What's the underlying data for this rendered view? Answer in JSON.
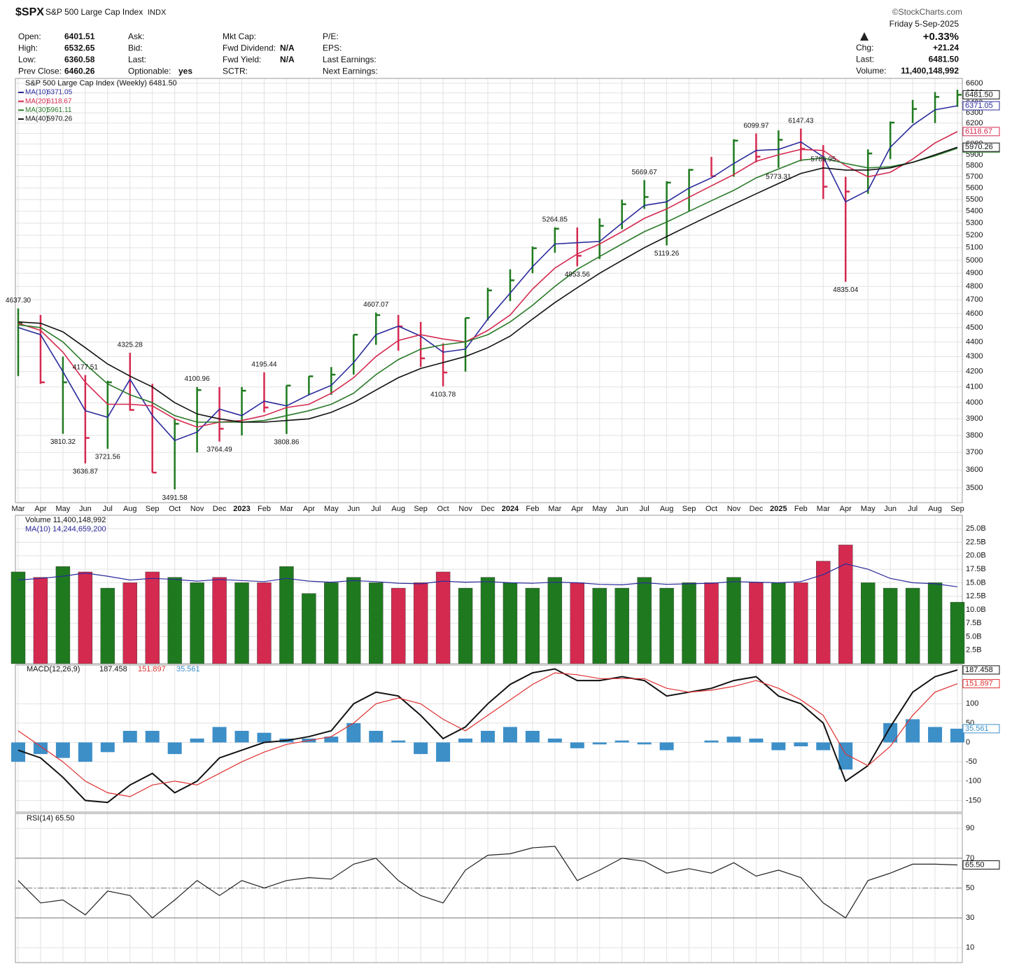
{
  "header": {
    "symbol": "$SPX",
    "name": "S&P 500 Large Cap Index",
    "exchange": "INDX",
    "credit": "©StockCharts.com",
    "date": "Friday  5-Sep-2025",
    "columns": [
      [
        {
          "label": "Open:",
          "value": "6401.51"
        },
        {
          "label": "High:",
          "value": "6532.65"
        },
        {
          "label": "Low:",
          "value": "6360.58"
        },
        {
          "label": "Prev Close:",
          "value": "6460.26"
        }
      ],
      [
        {
          "label": "Ask:"
        },
        {
          "label": "Bid:"
        },
        {
          "label": "Last:"
        },
        {
          "label": "Optionable:",
          "value": "yes"
        }
      ],
      [
        {
          "label": "Mkt Cap:"
        },
        {
          "label": "Fwd Dividend:",
          "value": "N/A"
        },
        {
          "label": "Fwd Yield:",
          "value": "N/A"
        },
        {
          "label": "SCTR:"
        }
      ],
      [
        {
          "label": "P/E:"
        },
        {
          "label": "EPS:"
        },
        {
          "label": "Last Earnings:"
        },
        {
          "label": "Next Earnings:"
        }
      ]
    ],
    "change_pct": "+0.33%",
    "summary": [
      {
        "label": "Chg:",
        "value": "+21.24"
      },
      {
        "label": "Last:",
        "value": "6481.50"
      },
      {
        "label": "Volume:",
        "value": "11,400,148,992"
      }
    ]
  },
  "chart_data": [
    {
      "type": "hlc",
      "title": "S&P 500 Large Cap Index (Weekly) 6481.50",
      "last_label": "6481.50",
      "log_scale": true,
      "grid": true,
      "up_color": "#1f7a1f",
      "down_color": "#d42a50",
      "categories": [
        "Mar",
        "Apr",
        "May",
        "Jun",
        "Jul",
        "Aug",
        "Sep",
        "Oct",
        "Nov",
        "Dec",
        "2023",
        "Feb",
        "Mar",
        "Apr",
        "May",
        "Jun",
        "Jul",
        "Aug",
        "Sep",
        "Oct",
        "Nov",
        "Dec",
        "2024",
        "Feb",
        "Mar",
        "Apr",
        "May",
        "Jun",
        "Jul",
        "Aug",
        "Sep",
        "Oct",
        "Nov",
        "Dec",
        "2025",
        "Feb",
        "Mar",
        "Apr",
        "May",
        "Jun",
        "Jul",
        "Aug",
        "Sep"
      ],
      "high": [
        4637,
        4590,
        4300,
        4177,
        4140,
        4325,
        4120,
        3900,
        4100,
        4100,
        4100,
        4195,
        4110,
        4170,
        4230,
        4450,
        4607,
        4590,
        4540,
        4390,
        4570,
        4790,
        4930,
        5110,
        5265,
        5265,
        5340,
        5500,
        5670,
        5660,
        5770,
        5880,
        6045,
        6100,
        6130,
        6147,
        5990,
        5700,
        5950,
        6215,
        6430,
        6510,
        6532.65
      ],
      "low": [
        4170,
        4120,
        3810,
        3637,
        3721,
        3950,
        3585,
        3492,
        3700,
        3764,
        3800,
        3940,
        3809,
        4050,
        4050,
        4180,
        4380,
        4340,
        4230,
        4104,
        4200,
        4550,
        4690,
        4900,
        5060,
        4954,
        5010,
        5250,
        5420,
        5119,
        5400,
        5700,
        5700,
        5830,
        5780,
        5840,
        5505,
        4835,
        5550,
        5860,
        6200,
        6200,
        6360.58
      ],
      "close": [
        4530,
        4130,
        4130,
        3785,
        4130,
        3955,
        3585,
        3870,
        4080,
        3840,
        4076,
        3970,
        4109,
        4169,
        4180,
        4450,
        4589,
        4508,
        4288,
        4194,
        4568,
        4770,
        4846,
        5096,
        5254,
        5036,
        5278,
        5460,
        5522,
        5648,
        5762,
        5705,
        6032,
        5882,
        6040,
        5955,
        5612,
        5569,
        5912,
        6205,
        6339,
        6460,
        6481.5
      ],
      "series": [
        {
          "name": "MA(10)",
          "last_label": "6371.05",
          "color": "#2b2b9c",
          "values": [
            4500,
            4450,
            4200,
            3950,
            3910,
            4150,
            3920,
            3770,
            3820,
            3960,
            3920,
            4010,
            3980,
            4050,
            4110,
            4260,
            4450,
            4510,
            4440,
            4330,
            4350,
            4560,
            4750,
            4950,
            5130,
            5140,
            5150,
            5300,
            5450,
            5480,
            5600,
            5690,
            5820,
            5940,
            5950,
            6020,
            5880,
            5480,
            5580,
            5970,
            6180,
            6330,
            6371.05
          ]
        },
        {
          "name": "MA(20)",
          "last_label": "6118.67",
          "color": "#d42a50",
          "values": [
            4530,
            4480,
            4330,
            4130,
            3990,
            3990,
            3980,
            3900,
            3850,
            3880,
            3890,
            3920,
            3970,
            3990,
            4060,
            4160,
            4300,
            4410,
            4450,
            4420,
            4400,
            4480,
            4590,
            4780,
            4940,
            5050,
            5130,
            5230,
            5340,
            5420,
            5520,
            5620,
            5720,
            5840,
            5900,
            5950,
            5940,
            5800,
            5700,
            5740,
            5860,
            6010,
            6118.67
          ]
        },
        {
          "name": "MA(30)",
          "last_label": "5961.11",
          "color": "#2a7a2a",
          "values": [
            4520,
            4500,
            4400,
            4250,
            4120,
            4050,
            4000,
            3920,
            3880,
            3880,
            3880,
            3890,
            3920,
            3950,
            3990,
            4060,
            4180,
            4280,
            4350,
            4380,
            4400,
            4450,
            4540,
            4660,
            4800,
            4930,
            5030,
            5130,
            5230,
            5310,
            5400,
            5490,
            5580,
            5690,
            5770,
            5850,
            5870,
            5820,
            5780,
            5790,
            5830,
            5890,
            5961.11
          ]
        },
        {
          "name": "MA(40)",
          "last_label": "5970.26",
          "color": "#111111",
          "values": [
            4540,
            4530,
            4470,
            4360,
            4250,
            4170,
            4100,
            4000,
            3930,
            3900,
            3880,
            3880,
            3890,
            3900,
            3940,
            4000,
            4080,
            4160,
            4220,
            4260,
            4300,
            4360,
            4440,
            4560,
            4680,
            4790,
            4900,
            5000,
            5100,
            5190,
            5280,
            5370,
            5460,
            5550,
            5640,
            5730,
            5780,
            5760,
            5760,
            5780,
            5830,
            5900,
            5970.26
          ]
        }
      ],
      "annotations": [
        {
          "index": 0,
          "value": 4637.3,
          "label": "4637.30"
        },
        {
          "index": 3,
          "value": 4177.51,
          "label": "4177.51"
        },
        {
          "index": 2,
          "value": 3810.32,
          "label": "3810.32"
        },
        {
          "index": 3,
          "value": 3636.87,
          "label": "3636.87"
        },
        {
          "index": 4,
          "value": 3721.56,
          "label": "3721.56"
        },
        {
          "index": 5,
          "value": 4325.28,
          "label": "4325.28"
        },
        {
          "index": 7,
          "value": 3491.58,
          "label": "3491.58"
        },
        {
          "index": 8,
          "value": 4100.96,
          "label": "4100.96"
        },
        {
          "index": 9,
          "value": 3764.49,
          "label": "3764.49"
        },
        {
          "index": 11,
          "value": 4195.44,
          "label": "4195.44"
        },
        {
          "index": 12,
          "value": 3808.86,
          "label": "3808.86"
        },
        {
          "index": 16,
          "value": 4607.07,
          "label": "4607.07"
        },
        {
          "index": 19,
          "value": 4103.78,
          "label": "4103.78"
        },
        {
          "index": 24,
          "value": 5264.85,
          "label": "5264.85"
        },
        {
          "index": 25,
          "value": 4953.56,
          "label": "4953.56"
        },
        {
          "index": 28,
          "value": 5669.67,
          "label": "5669.67"
        },
        {
          "index": 29,
          "value": 5119.26,
          "label": "5119.26"
        },
        {
          "index": 33,
          "value": 6099.97,
          "label": "6099.97"
        },
        {
          "index": 34,
          "value": 5773.31,
          "label": "5773.31"
        },
        {
          "index": 35,
          "value": 6147.43,
          "label": "6147.43"
        },
        {
          "index": 36,
          "value": 5786.95,
          "label": "5786.95"
        },
        {
          "index": 37,
          "value": 4835.04,
          "label": "4835.04"
        }
      ],
      "ylim": [
        3420,
        6650
      ],
      "yticks": [
        3500,
        3600,
        3700,
        3800,
        3900,
        4000,
        4100,
        4200,
        4300,
        4400,
        4500,
        4600,
        4700,
        4800,
        4900,
        5000,
        5100,
        5200,
        5300,
        5400,
        5500,
        5600,
        5700,
        5800,
        5900,
        6000,
        6100,
        6200,
        6300,
        6400,
        6500,
        6600
      ]
    },
    {
      "type": "volume",
      "title": "Volume 11,400,148,992",
      "grid": true,
      "values": [
        17,
        16,
        18,
        17,
        14,
        15,
        17,
        16,
        15,
        16,
        15,
        15,
        18,
        13,
        15,
        16,
        15,
        14,
        15,
        17,
        14,
        16,
        15,
        14,
        16,
        15,
        14,
        14,
        16,
        14,
        15,
        15,
        16,
        15,
        15,
        15,
        19,
        22,
        15,
        14,
        14,
        15,
        11.400148992
      ],
      "series": [
        {
          "name": "MA(10) 14,244,659,200",
          "color": "#2b2b9c",
          "values": [
            15.5,
            15.8,
            16.2,
            16.8,
            16.2,
            15.5,
            15.8,
            15.6,
            15.3,
            15.6,
            15.4,
            15.2,
            15.8,
            15.3,
            15.1,
            15.4,
            15.2,
            14.9,
            14.8,
            15.3,
            15.1,
            15.2,
            15.0,
            14.9,
            15.1,
            15.0,
            14.7,
            14.6,
            15.0,
            14.7,
            14.8,
            14.9,
            15.2,
            15.1,
            15.0,
            15.2,
            16.5,
            18.5,
            17.5,
            15.8,
            15.0,
            14.8,
            14.2446592
          ]
        }
      ],
      "ylim": [
        0,
        27.5
      ],
      "yticks": [
        {
          "value": 2.5,
          "label": "2.5B"
        },
        {
          "value": 5,
          "label": "5.0B"
        },
        {
          "value": 7.5,
          "label": "7.5B"
        },
        {
          "value": 10,
          "label": "10.0B"
        },
        {
          "value": 12.5,
          "label": "12.5B"
        },
        {
          "value": 15,
          "label": "15.0B"
        },
        {
          "value": 17.5,
          "label": "17.5B"
        },
        {
          "value": 20,
          "label": "20.0B"
        },
        {
          "value": 22.5,
          "label": "22.5B"
        },
        {
          "value": 25,
          "label": "25.0B"
        }
      ]
    },
    {
      "type": "macd",
      "title": "MACD(12,26,9)",
      "grid": true,
      "series": [
        {
          "name": "187.458",
          "color": "#111111",
          "values": [
            -20,
            -40,
            -90,
            -150,
            -155,
            -110,
            -80,
            -130,
            -100,
            -40,
            -20,
            0,
            5,
            15,
            30,
            100,
            130,
            120,
            70,
            10,
            40,
            100,
            150,
            180,
            190,
            160,
            160,
            170,
            160,
            120,
            130,
            140,
            160,
            170,
            120,
            100,
            50,
            -100,
            -60,
            40,
            130,
            170,
            187.458
          ]
        },
        {
          "name": "151.897",
          "color": "#e03030",
          "values": [
            30,
            -10,
            -50,
            -100,
            -130,
            -140,
            -110,
            -100,
            -110,
            -80,
            -50,
            -25,
            -5,
            5,
            15,
            50,
            100,
            115,
            100,
            60,
            30,
            70,
            110,
            150,
            180,
            175,
            165,
            165,
            165,
            140,
            130,
            135,
            145,
            160,
            140,
            110,
            70,
            -30,
            -60,
            -10,
            70,
            130,
            151.897
          ]
        },
        {
          "name": "35.561",
          "color": "#3d8fc8",
          "histogram": true,
          "values": [
            -50,
            -30,
            -40,
            -50,
            -25,
            30,
            30,
            -30,
            10,
            40,
            30,
            25,
            10,
            10,
            15,
            50,
            30,
            5,
            -30,
            -50,
            10,
            30,
            40,
            30,
            10,
            -15,
            -5,
            5,
            -5,
            -20,
            0,
            5,
            15,
            10,
            -20,
            -10,
            -20,
            -70,
            0,
            50,
            60,
            40,
            35.561
          ]
        }
      ],
      "ylim": [
        -180,
        200
      ],
      "yticks": [
        -150,
        -100,
        -50,
        0,
        50,
        100
      ]
    },
    {
      "type": "line",
      "title": "RSI(14) 65.50",
      "last_label": "65.50",
      "grid": true,
      "levels": [
        30,
        70
      ],
      "midline": 50,
      "series": [
        {
          "color": "#222222",
          "values": [
            55,
            40,
            42,
            32,
            48,
            45,
            30,
            42,
            55,
            45,
            55,
            50,
            55,
            57,
            56,
            66,
            70,
            55,
            45,
            40,
            62,
            72,
            73,
            77,
            78,
            55,
            62,
            70,
            68,
            60,
            63,
            60,
            67,
            58,
            62,
            57,
            40,
            30,
            55,
            60,
            66,
            66,
            65.5
          ]
        }
      ],
      "ylim": [
        0,
        100
      ],
      "yticks": [
        10,
        30,
        50,
        70,
        90
      ]
    }
  ]
}
